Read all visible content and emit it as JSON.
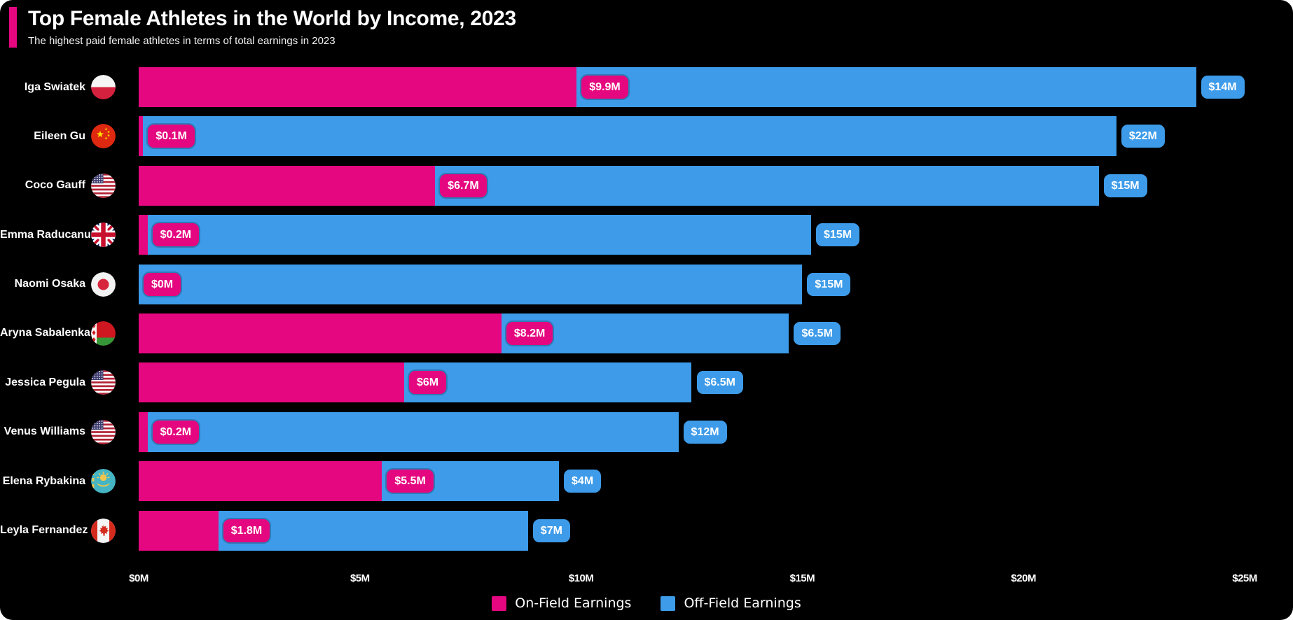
{
  "header": {
    "title": "Top Female Athletes in the World by Income, 2023",
    "subtitle": "The highest paid female athletes in terms of total earnings in 2023",
    "accent_color": "#E5077F"
  },
  "colors": {
    "background": "#000000",
    "text": "#FFFFFF",
    "on_field": "#E5077F",
    "off_field": "#3D9BE9"
  },
  "chart_data": {
    "type": "bar",
    "stacked": true,
    "orientation": "horizontal",
    "title": "Top Female Athletes in the World by Income, 2023",
    "subtitle": "The highest paid female athletes in terms of total earnings in 2023",
    "xlabel": "",
    "ylabel": "",
    "xlim": [
      0,
      25
    ],
    "x_axis_ticks": [
      {
        "value": 0,
        "label": "$0M"
      },
      {
        "value": 5,
        "label": "$5M"
      },
      {
        "value": 10,
        "label": "$10M"
      },
      {
        "value": 15,
        "label": "$15M"
      },
      {
        "value": 20,
        "label": "$20M"
      },
      {
        "value": 25,
        "label": "$25M"
      }
    ],
    "legend": [
      {
        "label": "On-Field Earnings",
        "color": "#E5077F"
      },
      {
        "label": "Off-Field Earnings",
        "color": "#3D9BE9"
      }
    ],
    "categories": [
      "Iga Swiatek",
      "Eileen Gu",
      "Coco Gauff",
      "Emma Raducanu",
      "Naomi Osaka",
      "Aryna Sabalenka",
      "Jessica Pegula",
      "Venus Williams",
      "Elena Rybakina",
      "Leyla Fernandez"
    ],
    "series": [
      {
        "name": "On-Field Earnings",
        "values": [
          9.9,
          0.1,
          6.7,
          0.2,
          0,
          8.2,
          6,
          0.2,
          5.5,
          1.8
        ]
      },
      {
        "name": "Off-Field Earnings",
        "values": [
          14,
          22,
          15,
          15,
          15,
          6.5,
          6.5,
          12,
          4,
          7
        ]
      }
    ],
    "rows": [
      {
        "name": "Iga Swiatek",
        "flag": "poland",
        "on_field": 9.9,
        "off_field": 14,
        "on_field_label": "$9.9M",
        "off_field_label": "$14M"
      },
      {
        "name": "Eileen Gu",
        "flag": "china",
        "on_field": 0.1,
        "off_field": 22,
        "on_field_label": "$0.1M",
        "off_field_label": "$22M"
      },
      {
        "name": "Coco Gauff",
        "flag": "usa",
        "on_field": 6.7,
        "off_field": 15,
        "on_field_label": "$6.7M",
        "off_field_label": "$15M"
      },
      {
        "name": "Emma Raducanu",
        "flag": "uk",
        "on_field": 0.2,
        "off_field": 15,
        "on_field_label": "$0.2M",
        "off_field_label": "$15M"
      },
      {
        "name": "Naomi Osaka",
        "flag": "japan",
        "on_field": 0,
        "off_field": 15,
        "on_field_label": "$0M",
        "off_field_label": "$15M"
      },
      {
        "name": "Aryna Sabalenka",
        "flag": "belarus",
        "on_field": 8.2,
        "off_field": 6.5,
        "on_field_label": "$8.2M",
        "off_field_label": "$6.5M"
      },
      {
        "name": "Jessica Pegula",
        "flag": "usa",
        "on_field": 6,
        "off_field": 6.5,
        "on_field_label": "$6M",
        "off_field_label": "$6.5M"
      },
      {
        "name": "Venus Williams",
        "flag": "usa",
        "on_field": 0.2,
        "off_field": 12,
        "on_field_label": "$0.2M",
        "off_field_label": "$12M"
      },
      {
        "name": "Elena Rybakina",
        "flag": "kazakhstan",
        "on_field": 5.5,
        "off_field": 4,
        "on_field_label": "$5.5M",
        "off_field_label": "$4M"
      },
      {
        "name": "Leyla Fernandez",
        "flag": "canada",
        "on_field": 1.8,
        "off_field": 7,
        "on_field_label": "$1.8M",
        "off_field_label": "$7M"
      }
    ]
  }
}
